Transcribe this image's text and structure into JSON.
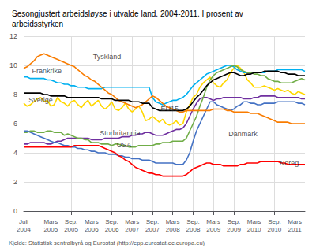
{
  "chart_data": {
    "type": "line",
    "title": "Sesongjustert arbeidsløyse i utvalde land. 2004-2011. I prosent av\narbeidsstyrken",
    "source": "Kjelde: Statistisk sentralbyrå og Eurostat (http://epp.eurostat.ec.europa.eu)",
    "categories": [
      "Juli\n2004",
      null,
      null,
      null,
      null,
      null,
      null,
      null,
      "Mars\n2005",
      null,
      null,
      null,
      null,
      null,
      "Sep.\n2005",
      null,
      null,
      null,
      null,
      null,
      "Mars\n2006",
      null,
      null,
      null,
      null,
      null,
      "Sep.\n2006",
      null,
      null,
      null,
      null,
      null,
      "Mars\n2007",
      null,
      null,
      null,
      null,
      null,
      "Sep.\n2007",
      null,
      null,
      null,
      null,
      null,
      "Mars\n2008",
      null,
      null,
      null,
      null,
      null,
      "Sep.\n2008",
      null,
      null,
      null,
      null,
      null,
      "Mars\n2009",
      null,
      null,
      null,
      null,
      null,
      "Sep.\n2009",
      null,
      null,
      null,
      null,
      null,
      "Mars\n2010",
      null,
      null,
      null,
      null,
      null,
      "Sep.\n2010",
      null,
      null,
      null,
      null,
      null,
      "Mars\n2011",
      null,
      null,
      null
    ],
    "series": [
      {
        "name": "Sverige",
        "color": "#ffd700",
        "values": [
          7.4,
          7.2,
          7.3,
          7.5,
          7.7,
          7.8,
          7.5,
          7.6,
          7.2,
          7.3,
          7.8,
          7.5,
          7.4,
          7.2,
          7.5,
          7.6,
          7.3,
          7.1,
          7.4,
          7.6,
          7.2,
          7.4,
          7.6,
          7.2,
          7.0,
          7.2,
          7.5,
          7.0,
          6.9,
          7.1,
          7.4,
          7.0,
          6.8,
          7.0,
          7.2,
          6.8,
          6.2,
          6.3,
          6.5,
          6.3,
          6.1,
          6.3,
          6.0,
          5.9,
          6.0,
          6.2,
          5.9,
          6.0,
          6.8,
          7.3,
          7.8,
          8.0,
          8.5,
          8.8,
          9.0,
          9.2,
          8.8,
          8.6,
          8.5,
          8.8,
          9.0,
          9.5,
          9.8,
          10.0,
          9.8,
          9.5,
          9.0,
          8.8,
          8.5,
          8.5,
          8.5,
          8.6,
          8.5,
          8.4,
          8.3,
          8.4,
          8.3,
          8.2,
          8.3,
          8.1,
          8.0,
          8.2,
          8.1,
          8.0
        ]
      },
      {
        "name": "Frankrike",
        "color": "#00b0f0",
        "values": [
          9.2,
          9.2,
          9.1,
          9.1,
          9.1,
          9.1,
          9.1,
          9.0,
          9.0,
          8.9,
          8.8,
          8.8,
          8.7,
          8.7,
          8.6,
          8.6,
          8.5,
          8.5,
          8.5,
          8.4,
          8.4,
          8.4,
          8.4,
          8.4,
          8.5,
          8.5,
          8.5,
          8.5,
          8.5,
          8.5,
          8.5,
          8.5,
          8.5,
          8.5,
          8.5,
          8.5,
          8.5,
          8.5,
          7.8,
          7.5,
          7.4,
          7.3,
          7.4,
          7.5,
          7.6,
          7.6,
          7.7,
          7.8,
          8.0,
          8.3,
          8.6,
          8.8,
          9.0,
          9.2,
          9.4,
          9.5,
          9.6,
          9.7,
          9.8,
          9.9,
          10.0,
          10.0,
          9.9,
          9.7,
          9.6,
          9.5,
          9.5,
          9.5,
          9.5,
          9.5,
          9.5,
          9.5,
          9.6,
          9.6,
          9.6,
          9.7,
          9.7,
          9.7,
          9.7,
          9.7,
          9.7,
          9.7,
          9.7,
          9.6
        ]
      },
      {
        "name": "Storbritannia",
        "color": "#7030a0",
        "values": [
          4.6,
          4.6,
          4.7,
          4.7,
          4.7,
          4.7,
          4.7,
          4.6,
          4.6,
          4.7,
          4.8,
          4.8,
          4.9,
          5.0,
          5.0,
          5.0,
          5.0,
          5.0,
          5.0,
          5.0,
          4.9,
          4.9,
          4.9,
          4.9,
          5.0,
          5.0,
          5.0,
          5.0,
          5.0,
          5.1,
          5.1,
          5.1,
          5.2,
          5.2,
          5.3,
          5.3,
          5.4,
          5.4,
          5.3,
          5.2,
          5.2,
          5.2,
          5.3,
          5.4,
          5.5,
          5.6,
          5.6,
          5.7,
          6.0,
          6.5,
          7.0,
          7.4,
          7.7,
          7.8,
          7.8,
          7.7,
          7.6,
          7.7,
          7.7,
          7.8,
          7.8,
          7.8,
          7.8,
          7.8,
          7.8,
          7.7,
          7.7,
          7.7,
          7.8,
          7.8,
          7.9,
          7.9,
          7.9,
          7.9,
          7.9,
          7.8,
          7.8,
          7.8,
          7.8,
          7.8,
          7.8,
          7.8,
          7.7,
          7.7
        ]
      },
      {
        "name": "USA",
        "color": "#70ad47",
        "values": [
          5.4,
          5.4,
          5.5,
          5.5,
          5.4,
          5.4,
          5.4,
          5.5,
          5.5,
          5.4,
          5.4,
          5.4,
          5.2,
          5.3,
          5.2,
          5.1,
          5.0,
          5.0,
          4.9,
          4.9,
          4.7,
          4.7,
          4.7,
          4.6,
          4.6,
          4.6,
          4.5,
          4.6,
          4.6,
          4.5,
          4.5,
          4.4,
          4.4,
          4.4,
          4.5,
          4.5,
          4.5,
          4.5,
          4.5,
          4.6,
          4.6,
          4.7,
          4.7,
          4.7,
          4.8,
          4.8,
          4.8,
          4.8,
          5.0,
          5.5,
          6.0,
          6.5,
          7.2,
          7.8,
          8.5,
          9.0,
          9.3,
          9.5,
          9.6,
          9.7,
          9.8,
          9.9,
          10.0,
          9.9,
          9.7,
          9.6,
          9.5,
          9.5,
          9.4,
          9.4,
          9.3,
          9.3,
          9.1,
          9.0,
          8.9,
          8.9,
          8.8,
          8.8,
          8.8,
          8.8,
          8.9,
          9.0,
          9.1,
          9.0
        ]
      },
      {
        "name": "Danmark",
        "color": "#4472c4",
        "values": [
          5.5,
          5.5,
          5.4,
          5.3,
          5.2,
          5.1,
          5.0,
          4.9,
          4.8,
          4.7,
          4.7,
          4.6,
          4.5,
          4.5,
          4.4,
          4.4,
          4.3,
          4.3,
          4.2,
          4.2,
          4.1,
          4.1,
          4.0,
          4.0,
          4.0,
          3.9,
          3.9,
          3.9,
          3.8,
          3.8,
          3.7,
          3.7,
          3.6,
          3.6,
          3.6,
          3.5,
          3.5,
          3.5,
          3.4,
          3.3,
          3.3,
          3.3,
          3.3,
          3.3,
          3.3,
          3.2,
          3.2,
          3.2,
          3.5,
          4.0,
          4.8,
          5.5,
          6.0,
          6.5,
          7.0,
          7.5,
          7.5,
          7.3,
          7.2,
          7.1,
          7.0,
          6.9,
          7.0,
          7.2,
          7.3,
          7.5,
          7.5,
          7.4,
          7.4,
          7.3,
          7.3,
          7.4,
          7.4,
          7.4,
          7.4,
          7.5,
          7.5,
          7.5,
          7.5,
          7.5,
          7.5,
          7.4,
          7.4,
          7.3
        ]
      },
      {
        "name": "Noreg",
        "color": "#ff0000",
        "values": [
          4.4,
          4.4,
          4.4,
          4.4,
          4.4,
          4.4,
          4.4,
          4.4,
          4.4,
          4.4,
          4.4,
          4.4,
          4.4,
          4.4,
          4.4,
          4.5,
          4.5,
          4.5,
          4.5,
          4.5,
          4.5,
          4.5,
          4.5,
          4.4,
          4.3,
          4.2,
          4.1,
          4.0,
          3.8,
          3.7,
          3.5,
          3.4,
          3.2,
          3.0,
          2.9,
          2.8,
          2.7,
          2.6,
          2.6,
          2.5,
          2.5,
          2.4,
          2.4,
          2.4,
          2.4,
          2.4,
          2.4,
          2.4,
          2.5,
          2.7,
          2.9,
          3.0,
          3.1,
          3.2,
          3.3,
          3.3,
          3.2,
          3.2,
          3.2,
          3.1,
          3.1,
          3.1,
          3.1,
          3.1,
          3.2,
          3.2,
          3.3,
          3.3,
          3.3,
          3.3,
          3.4,
          3.4,
          3.4,
          3.4,
          3.4,
          3.4,
          3.3,
          3.3,
          3.2,
          3.2,
          3.2,
          3.2,
          3.2,
          3.2
        ]
      },
      {
        "name": "Tyskland",
        "color": "#f97c00",
        "values": [
          9.8,
          9.9,
          10.1,
          10.3,
          10.6,
          10.7,
          10.8,
          10.7,
          10.6,
          10.5,
          10.4,
          10.3,
          10.2,
          10.1,
          10.0,
          9.9,
          9.7,
          9.5,
          9.3,
          9.2,
          9.0,
          8.9,
          8.7,
          8.5,
          8.3,
          8.1,
          8.0,
          7.8,
          7.6,
          7.5,
          7.4,
          7.3,
          7.2,
          7.1,
          7.2,
          7.3,
          7.5,
          7.7,
          7.9,
          7.8,
          7.6,
          7.4,
          7.2,
          7.1,
          7.0,
          6.9,
          6.8,
          6.8,
          6.9,
          6.9,
          6.9,
          6.9,
          6.9,
          6.9,
          6.9,
          6.9,
          7.0,
          7.0,
          7.0,
          7.0,
          6.9,
          6.9,
          6.8,
          6.8,
          6.8,
          6.8,
          6.8,
          6.7,
          6.7,
          6.7,
          6.6,
          6.5,
          6.4,
          6.3,
          6.2,
          6.1,
          6.1,
          6.1,
          6.1,
          6.0,
          6.0,
          6.0,
          6.0,
          6.0
        ]
      },
      {
        "name": "EU15",
        "color": "#000000",
        "values": [
          8.1,
          8.1,
          8.1,
          8.1,
          8.1,
          8.1,
          8.0,
          8.0,
          7.9,
          7.9,
          7.9,
          7.9,
          7.9,
          7.8,
          7.8,
          7.8,
          7.8,
          7.8,
          7.8,
          7.8,
          7.8,
          7.8,
          7.8,
          7.7,
          7.7,
          7.7,
          7.7,
          7.6,
          7.6,
          7.6,
          7.6,
          7.6,
          7.5,
          7.5,
          7.5,
          7.4,
          7.4,
          7.4,
          7.1,
          7.0,
          6.9,
          6.9,
          6.9,
          6.9,
          6.9,
          6.9,
          6.9,
          6.9,
          7.0,
          7.2,
          7.5,
          7.8,
          8.0,
          8.3,
          8.6,
          8.8,
          9.0,
          9.1,
          9.2,
          9.3,
          9.4,
          9.5,
          9.5,
          9.4,
          9.3,
          9.3,
          9.4,
          9.4,
          9.5,
          9.5,
          9.5,
          9.6,
          9.6,
          9.6,
          9.6,
          9.6,
          9.5,
          9.5,
          9.4,
          9.4,
          9.4,
          9.3,
          9.3,
          9.3
        ]
      }
    ],
    "annotations": [
      {
        "text": "Tyskland",
        "x": 20,
        "y": 10.6
      },
      {
        "text": "Frankrike",
        "x": 2,
        "y": 9.6
      },
      {
        "text": "EU15",
        "x": 40,
        "y": 7.05
      },
      {
        "text": "Sverige",
        "x": 1,
        "y": 7.6
      },
      {
        "text": "Storbritannia",
        "x": 22,
        "y": 5.35
      },
      {
        "text": "USA",
        "x": 27,
        "y": 4.55
      },
      {
        "text": "Danmark",
        "x": 60,
        "y": 5.3
      },
      {
        "text": "Noreg",
        "x": 75,
        "y": 3.3
      }
    ],
    "ylim": [
      0,
      12
    ],
    "yticks": [
      0,
      2,
      4,
      6,
      8,
      10,
      12
    ],
    "grid": true
  }
}
